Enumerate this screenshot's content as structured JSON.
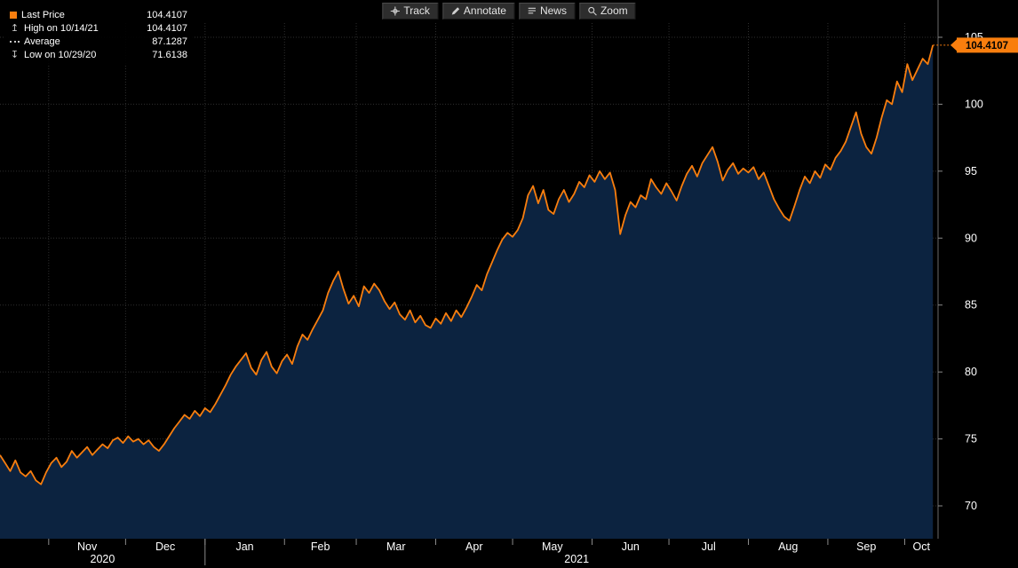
{
  "colors": {
    "accent": "#f97e0e",
    "area_fill": "#0c2340",
    "grid": "#2e2e2e",
    "axis_line": "#6a6a6a",
    "tick_mark": "#8a8a8a",
    "axis_text": "#ffffff",
    "background": "#000000",
    "badge_text": "#000000"
  },
  "toolbar": {
    "buttons": [
      {
        "label": "Track",
        "icon": "track-crosshair-icon"
      },
      {
        "label": "Annotate",
        "icon": "pencil-icon"
      },
      {
        "label": "News",
        "icon": "news-lines-icon"
      },
      {
        "label": "Zoom",
        "icon": "magnifier-icon"
      }
    ]
  },
  "legend": {
    "rows": [
      {
        "icon": "last-price-swatch-icon",
        "label": "Last Price",
        "value": "104.4107"
      },
      {
        "icon": "high-arrow-icon",
        "label": "High on 10/14/21",
        "value": "104.4107"
      },
      {
        "icon": "average-dash-icon",
        "label": "Average",
        "value": "87.1287"
      },
      {
        "icon": "low-arrow-icon",
        "label": "Low on 10/29/20",
        "value": "71.6138"
      }
    ]
  },
  "axis": {
    "y_ticks": [
      105,
      100,
      95,
      90,
      85,
      80,
      75,
      70
    ],
    "last_price_badge": "104.4107",
    "months": [
      {
        "label": "Nov",
        "start_day": 19,
        "center_day": 34
      },
      {
        "label": "Dec",
        "start_day": 49,
        "center_day": 64.5
      },
      {
        "label": "Jan",
        "start_day": 80,
        "center_day": 95.5
      },
      {
        "label": "Feb",
        "start_day": 111,
        "center_day": 125
      },
      {
        "label": "Mar",
        "start_day": 139,
        "center_day": 154.5
      },
      {
        "label": "Apr",
        "start_day": 170,
        "center_day": 185
      },
      {
        "label": "May",
        "start_day": 200,
        "center_day": 215.5
      },
      {
        "label": "Jun",
        "start_day": 231,
        "center_day": 246
      },
      {
        "label": "Jul",
        "start_day": 261,
        "center_day": 276.5
      },
      {
        "label": "Aug",
        "start_day": 292,
        "center_day": 307.5
      },
      {
        "label": "Sep",
        "start_day": 323,
        "center_day": 338
      },
      {
        "label": "Oct",
        "start_day": 353,
        "center_day": 359.5
      }
    ],
    "years": [
      {
        "label": "2020",
        "center_day": 40
      },
      {
        "label": "2021",
        "center_day": 225
      }
    ],
    "year_separator_day": 80
  },
  "chart_data": {
    "type": "area",
    "title": "Last Price",
    "xlabel": "",
    "ylabel": "Price",
    "ylim": [
      70,
      105
    ],
    "y_ticks": [
      70,
      75,
      80,
      85,
      90,
      95,
      100,
      105
    ],
    "x_unit": "day_index (Oct 2020 - Oct 2021, months Nov-Oct labeled on axis)",
    "grid": true,
    "legend_position": "top-left",
    "stats": {
      "last_price": 104.4107,
      "high": 104.4107,
      "high_date": "10/14/21",
      "average": 87.1287,
      "low": 71.6138,
      "low_date": "10/29/20"
    },
    "series": [
      {
        "name": "Last Price",
        "color": "#f97e0e",
        "fill": "#0c2340",
        "points": [
          [
            0,
            73.8
          ],
          [
            2,
            73.2
          ],
          [
            4,
            72.6
          ],
          [
            6,
            73.4
          ],
          [
            8,
            72.5
          ],
          [
            10,
            72.2
          ],
          [
            12,
            72.6
          ],
          [
            14,
            71.9
          ],
          [
            16,
            71.61
          ],
          [
            18,
            72.5
          ],
          [
            20,
            73.2
          ],
          [
            22,
            73.6
          ],
          [
            24,
            72.9
          ],
          [
            26,
            73.3
          ],
          [
            28,
            74.1
          ],
          [
            30,
            73.6
          ],
          [
            32,
            74.0
          ],
          [
            34,
            74.4
          ],
          [
            36,
            73.8
          ],
          [
            38,
            74.2
          ],
          [
            40,
            74.6
          ],
          [
            42,
            74.3
          ],
          [
            44,
            74.9
          ],
          [
            46,
            75.1
          ],
          [
            48,
            74.7
          ],
          [
            50,
            75.2
          ],
          [
            52,
            74.8
          ],
          [
            54,
            75.0
          ],
          [
            56,
            74.6
          ],
          [
            58,
            74.9
          ],
          [
            60,
            74.4
          ],
          [
            62,
            74.1
          ],
          [
            64,
            74.6
          ],
          [
            66,
            75.2
          ],
          [
            68,
            75.8
          ],
          [
            70,
            76.3
          ],
          [
            72,
            76.8
          ],
          [
            74,
            76.5
          ],
          [
            76,
            77.1
          ],
          [
            78,
            76.7
          ],
          [
            80,
            77.3
          ],
          [
            82,
            77.0
          ],
          [
            84,
            77.6
          ],
          [
            86,
            78.3
          ],
          [
            88,
            79.0
          ],
          [
            90,
            79.8
          ],
          [
            92,
            80.4
          ],
          [
            94,
            80.9
          ],
          [
            96,
            81.4
          ],
          [
            98,
            80.3
          ],
          [
            100,
            79.8
          ],
          [
            102,
            80.9
          ],
          [
            104,
            81.5
          ],
          [
            106,
            80.4
          ],
          [
            108,
            79.9
          ],
          [
            110,
            80.8
          ],
          [
            112,
            81.3
          ],
          [
            114,
            80.6
          ],
          [
            116,
            81.9
          ],
          [
            118,
            82.8
          ],
          [
            120,
            82.4
          ],
          [
            122,
            83.2
          ],
          [
            124,
            83.9
          ],
          [
            126,
            84.6
          ],
          [
            128,
            85.9
          ],
          [
            130,
            86.8
          ],
          [
            132,
            87.5
          ],
          [
            134,
            86.2
          ],
          [
            136,
            85.1
          ],
          [
            138,
            85.7
          ],
          [
            140,
            84.9
          ],
          [
            142,
            86.4
          ],
          [
            144,
            85.9
          ],
          [
            146,
            86.6
          ],
          [
            148,
            86.1
          ],
          [
            150,
            85.3
          ],
          [
            152,
            84.7
          ],
          [
            154,
            85.2
          ],
          [
            156,
            84.3
          ],
          [
            158,
            83.9
          ],
          [
            160,
            84.6
          ],
          [
            162,
            83.7
          ],
          [
            164,
            84.2
          ],
          [
            166,
            83.5
          ],
          [
            168,
            83.3
          ],
          [
            170,
            84.0
          ],
          [
            172,
            83.6
          ],
          [
            174,
            84.4
          ],
          [
            176,
            83.8
          ],
          [
            178,
            84.6
          ],
          [
            180,
            84.1
          ],
          [
            182,
            84.8
          ],
          [
            184,
            85.6
          ],
          [
            186,
            86.5
          ],
          [
            188,
            86.1
          ],
          [
            190,
            87.3
          ],
          [
            192,
            88.2
          ],
          [
            194,
            89.1
          ],
          [
            196,
            89.9
          ],
          [
            198,
            90.4
          ],
          [
            200,
            90.1
          ],
          [
            202,
            90.6
          ],
          [
            204,
            91.5
          ],
          [
            206,
            93.2
          ],
          [
            208,
            93.9
          ],
          [
            210,
            92.6
          ],
          [
            212,
            93.6
          ],
          [
            214,
            92.1
          ],
          [
            216,
            91.8
          ],
          [
            218,
            92.9
          ],
          [
            220,
            93.6
          ],
          [
            222,
            92.7
          ],
          [
            224,
            93.3
          ],
          [
            226,
            94.2
          ],
          [
            228,
            93.8
          ],
          [
            230,
            94.7
          ],
          [
            232,
            94.2
          ],
          [
            234,
            95.0
          ],
          [
            236,
            94.4
          ],
          [
            238,
            94.9
          ],
          [
            240,
            93.6
          ],
          [
            242,
            90.3
          ],
          [
            244,
            91.7
          ],
          [
            246,
            92.7
          ],
          [
            248,
            92.3
          ],
          [
            250,
            93.2
          ],
          [
            252,
            92.9
          ],
          [
            254,
            94.4
          ],
          [
            256,
            93.8
          ],
          [
            258,
            93.3
          ],
          [
            260,
            94.1
          ],
          [
            262,
            93.5
          ],
          [
            264,
            92.8
          ],
          [
            266,
            93.9
          ],
          [
            268,
            94.8
          ],
          [
            270,
            95.4
          ],
          [
            272,
            94.6
          ],
          [
            274,
            95.6
          ],
          [
            276,
            96.2
          ],
          [
            278,
            96.8
          ],
          [
            280,
            95.7
          ],
          [
            282,
            94.3
          ],
          [
            284,
            95.1
          ],
          [
            286,
            95.6
          ],
          [
            288,
            94.8
          ],
          [
            290,
            95.2
          ],
          [
            292,
            94.9
          ],
          [
            294,
            95.3
          ],
          [
            296,
            94.4
          ],
          [
            298,
            94.9
          ],
          [
            300,
            93.9
          ],
          [
            302,
            92.9
          ],
          [
            304,
            92.2
          ],
          [
            306,
            91.6
          ],
          [
            308,
            91.3
          ],
          [
            310,
            92.4
          ],
          [
            312,
            93.6
          ],
          [
            314,
            94.6
          ],
          [
            316,
            94.1
          ],
          [
            318,
            95.0
          ],
          [
            320,
            94.5
          ],
          [
            322,
            95.5
          ],
          [
            324,
            95.1
          ],
          [
            326,
            96.0
          ],
          [
            328,
            96.5
          ],
          [
            330,
            97.2
          ],
          [
            332,
            98.3
          ],
          [
            334,
            99.4
          ],
          [
            336,
            97.8
          ],
          [
            338,
            96.8
          ],
          [
            340,
            96.3
          ],
          [
            342,
            97.5
          ],
          [
            344,
            99.0
          ],
          [
            346,
            100.3
          ],
          [
            348,
            100.0
          ],
          [
            350,
            101.7
          ],
          [
            352,
            100.9
          ],
          [
            354,
            103.0
          ],
          [
            356,
            101.8
          ],
          [
            358,
            102.6
          ],
          [
            360,
            103.4
          ],
          [
            362,
            103.0
          ],
          [
            364,
            104.41
          ]
        ]
      }
    ]
  }
}
